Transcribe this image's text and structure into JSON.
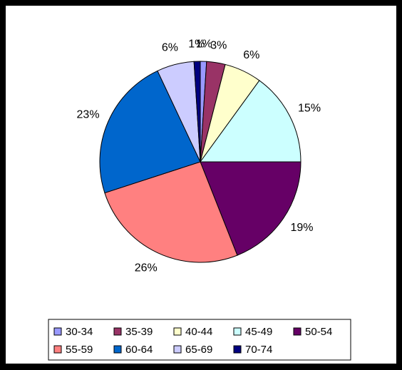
{
  "chart_data": {
    "type": "pie",
    "categories": [
      "30-34",
      "35-39",
      "40-44",
      "45-49",
      "50-54",
      "55-59",
      "60-64",
      "65-69",
      "70-74"
    ],
    "values": [
      1,
      3,
      6,
      15,
      19,
      26,
      23,
      6,
      1
    ],
    "value_labels": [
      "1%",
      "3%",
      "6%",
      "15%",
      "19%",
      "26%",
      "23%",
      "6%",
      "1%"
    ],
    "colors": [
      "#9999ff",
      "#993366",
      "#ffffcc",
      "#ccffff",
      "#660066",
      "#ff8080",
      "#0066cc",
      "#ccccff",
      "#000080"
    ],
    "legend": "bottom"
  }
}
